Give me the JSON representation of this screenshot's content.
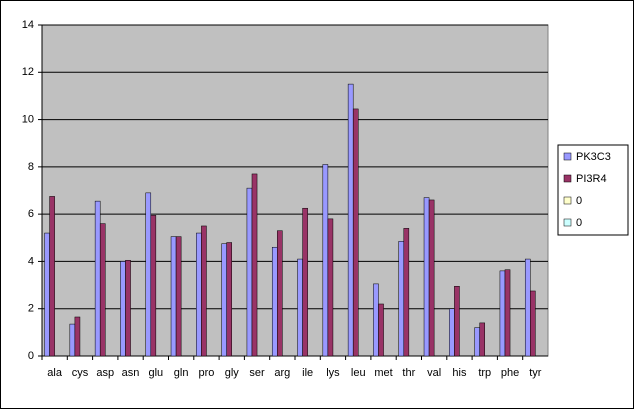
{
  "chart_data": {
    "type": "bar",
    "categories": [
      "ala",
      "cys",
      "asp",
      "asn",
      "glu",
      "gln",
      "pro",
      "gly",
      "ser",
      "arg",
      "ile",
      "lys",
      "leu",
      "met",
      "thr",
      "val",
      "his",
      "trp",
      "phe",
      "tyr"
    ],
    "series": [
      {
        "name": "PK3C3",
        "color": "#9999ff",
        "values": [
          5.2,
          1.35,
          6.55,
          4.0,
          6.9,
          5.05,
          5.2,
          4.75,
          7.1,
          4.6,
          4.1,
          8.1,
          11.5,
          3.05,
          4.85,
          6.7,
          2.0,
          1.2,
          3.6,
          4.1
        ]
      },
      {
        "name": "PI3R4",
        "color": "#993366",
        "values": [
          6.75,
          1.65,
          5.6,
          4.05,
          5.95,
          5.05,
          5.5,
          4.8,
          7.7,
          5.3,
          6.25,
          5.8,
          10.45,
          2.2,
          5.4,
          6.6,
          2.95,
          1.4,
          3.65,
          2.75
        ]
      },
      {
        "name": "0",
        "color": "#ffffcc",
        "values": [
          0,
          0,
          0,
          0,
          0,
          0,
          0,
          0,
          0,
          0,
          0,
          0,
          0,
          0,
          0,
          0,
          0,
          0,
          0,
          0
        ]
      },
      {
        "name": "0",
        "color": "#ccffff",
        "values": [
          0,
          0,
          0,
          0,
          0,
          0,
          0,
          0,
          0,
          0,
          0,
          0,
          0,
          0,
          0,
          0,
          0,
          0,
          0,
          0
        ]
      }
    ],
    "ylim": [
      0,
      14
    ],
    "yticks": [
      0,
      2,
      4,
      6,
      8,
      10,
      12,
      14
    ],
    "grid": true,
    "legend": "right",
    "plot_background": "#c0c0c0"
  }
}
